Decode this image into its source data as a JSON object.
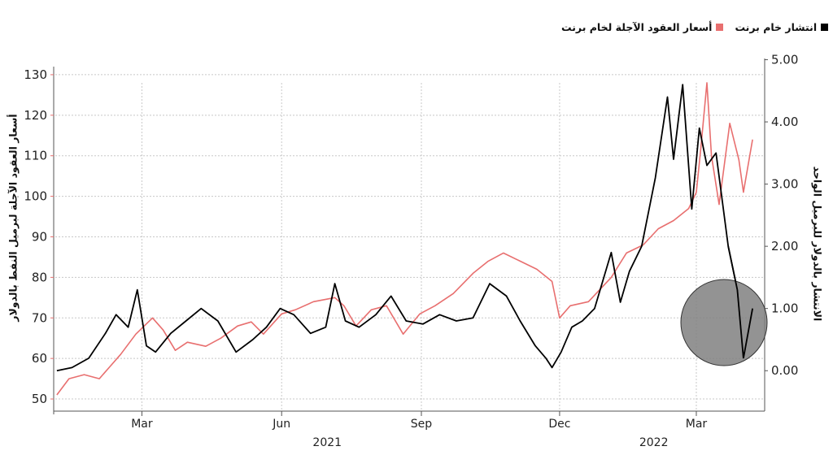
{
  "legend": {
    "spread_label": "انتشار خام برنت",
    "futures_label": "أسعار العقود الآجلة لخام برنت"
  },
  "colors": {
    "spread": "#000000",
    "futures": "#e86f6f",
    "grid": "#c8c8c8",
    "highlight": "#808080"
  },
  "chart_data": {
    "type": "line",
    "left_axis": {
      "label": "أسعار العقود الآجلة لبرميل النفط بالدولار",
      "ylim": [
        47,
        136
      ],
      "ticks": [
        50,
        60,
        70,
        80,
        90,
        100,
        110,
        120,
        130
      ]
    },
    "right_axis": {
      "label": "الانتشار بالدولار للبرميل الواحد",
      "ylim": [
        -0.65,
        5.15
      ],
      "ticks": [
        "0.00",
        "1.00",
        "2.00",
        "3.00",
        "4.00",
        "5.00"
      ]
    },
    "x_range": [
      "2021-01-04",
      "2022-04-07"
    ],
    "x_month_ticks": [
      {
        "date": "2021-03-01",
        "label": "Mar"
      },
      {
        "date": "2021-06-01",
        "label": "Jun"
      },
      {
        "date": "2021-09-01",
        "label": "Sep"
      },
      {
        "date": "2021-12-01",
        "label": "Dec"
      },
      {
        "date": "2022-03-01",
        "label": "Mar"
      }
    ],
    "x_year_labels": [
      {
        "date": "2021-07-01",
        "label": "2021"
      },
      {
        "date": "2022-02-01",
        "label": "2022"
      }
    ],
    "grid": true,
    "legend_position": "top-right",
    "series": [
      {
        "name": "أسعار العقود الآجلة لخام برنت",
        "axis": "left",
        "color": "#e86f6f",
        "x": [
          "2021-01-04",
          "2021-01-12",
          "2021-01-22",
          "2021-02-01",
          "2021-02-08",
          "2021-02-15",
          "2021-02-25",
          "2021-03-08",
          "2021-03-15",
          "2021-03-23",
          "2021-03-31",
          "2021-04-12",
          "2021-04-22",
          "2021-05-03",
          "2021-05-12",
          "2021-05-20",
          "2021-06-01",
          "2021-06-10",
          "2021-06-22",
          "2021-07-06",
          "2021-07-12",
          "2021-07-20",
          "2021-07-30",
          "2021-08-09",
          "2021-08-20",
          "2021-08-31",
          "2021-09-10",
          "2021-09-22",
          "2021-10-05",
          "2021-10-15",
          "2021-10-25",
          "2021-11-05",
          "2021-11-16",
          "2021-11-26",
          "2021-12-01",
          "2021-12-08",
          "2021-12-20",
          "2022-01-04",
          "2022-01-14",
          "2022-01-25",
          "2022-02-04",
          "2022-02-14",
          "2022-02-24",
          "2022-03-01",
          "2022-03-04",
          "2022-03-08",
          "2022-03-11",
          "2022-03-16",
          "2022-03-23",
          "2022-03-29",
          "2022-04-01",
          "2022-04-07"
        ],
        "y": [
          51,
          55,
          56,
          55,
          58,
          61,
          66,
          70,
          67,
          62,
          64,
          63,
          65,
          68,
          69,
          66,
          71,
          72,
          74,
          75,
          73,
          68,
          72,
          73,
          66,
          71,
          73,
          76,
          81,
          84,
          86,
          84,
          82,
          79,
          70,
          73,
          74,
          80,
          86,
          88,
          92,
          94,
          97,
          101,
          112,
          128,
          110,
          98,
          118,
          109,
          101,
          114
        ]
      },
      {
        "name": "انتشار خام برنت",
        "axis": "right",
        "color": "#000000",
        "x": [
          "2021-01-04",
          "2021-01-14",
          "2021-01-25",
          "2021-02-05",
          "2021-02-12",
          "2021-02-20",
          "2021-02-26",
          "2021-03-04",
          "2021-03-10",
          "2021-03-20",
          "2021-03-30",
          "2021-04-09",
          "2021-04-20",
          "2021-05-02",
          "2021-05-13",
          "2021-05-22",
          "2021-05-31",
          "2021-06-09",
          "2021-06-20",
          "2021-06-30",
          "2021-07-06",
          "2021-07-13",
          "2021-07-22",
          "2021-08-02",
          "2021-08-12",
          "2021-08-22",
          "2021-09-02",
          "2021-09-13",
          "2021-09-24",
          "2021-10-05",
          "2021-10-16",
          "2021-10-27",
          "2021-11-05",
          "2021-11-15",
          "2021-11-22",
          "2021-11-26",
          "2021-12-02",
          "2021-12-09",
          "2021-12-16",
          "2021-12-24",
          "2022-01-04",
          "2022-01-10",
          "2022-01-16",
          "2022-01-24",
          "2022-02-02",
          "2022-02-10",
          "2022-02-14",
          "2022-02-20",
          "2022-02-26",
          "2022-03-03",
          "2022-03-08",
          "2022-03-14",
          "2022-03-22",
          "2022-03-28",
          "2022-04-01",
          "2022-04-07"
        ],
        "y": [
          0.0,
          0.05,
          0.2,
          0.6,
          0.9,
          0.7,
          1.3,
          0.4,
          0.3,
          0.6,
          0.8,
          1.0,
          0.8,
          0.3,
          0.5,
          0.7,
          1.0,
          0.9,
          0.6,
          0.7,
          1.4,
          0.8,
          0.7,
          0.9,
          1.2,
          0.8,
          0.75,
          0.9,
          0.8,
          0.85,
          1.4,
          1.2,
          0.8,
          0.4,
          0.2,
          0.05,
          0.3,
          0.7,
          0.8,
          1.0,
          1.9,
          1.1,
          1.6,
          2.0,
          3.1,
          4.4,
          3.4,
          4.6,
          2.6,
          3.9,
          3.3,
          3.5,
          2.0,
          1.3,
          0.2,
          1.0
        ]
      }
    ]
  }
}
